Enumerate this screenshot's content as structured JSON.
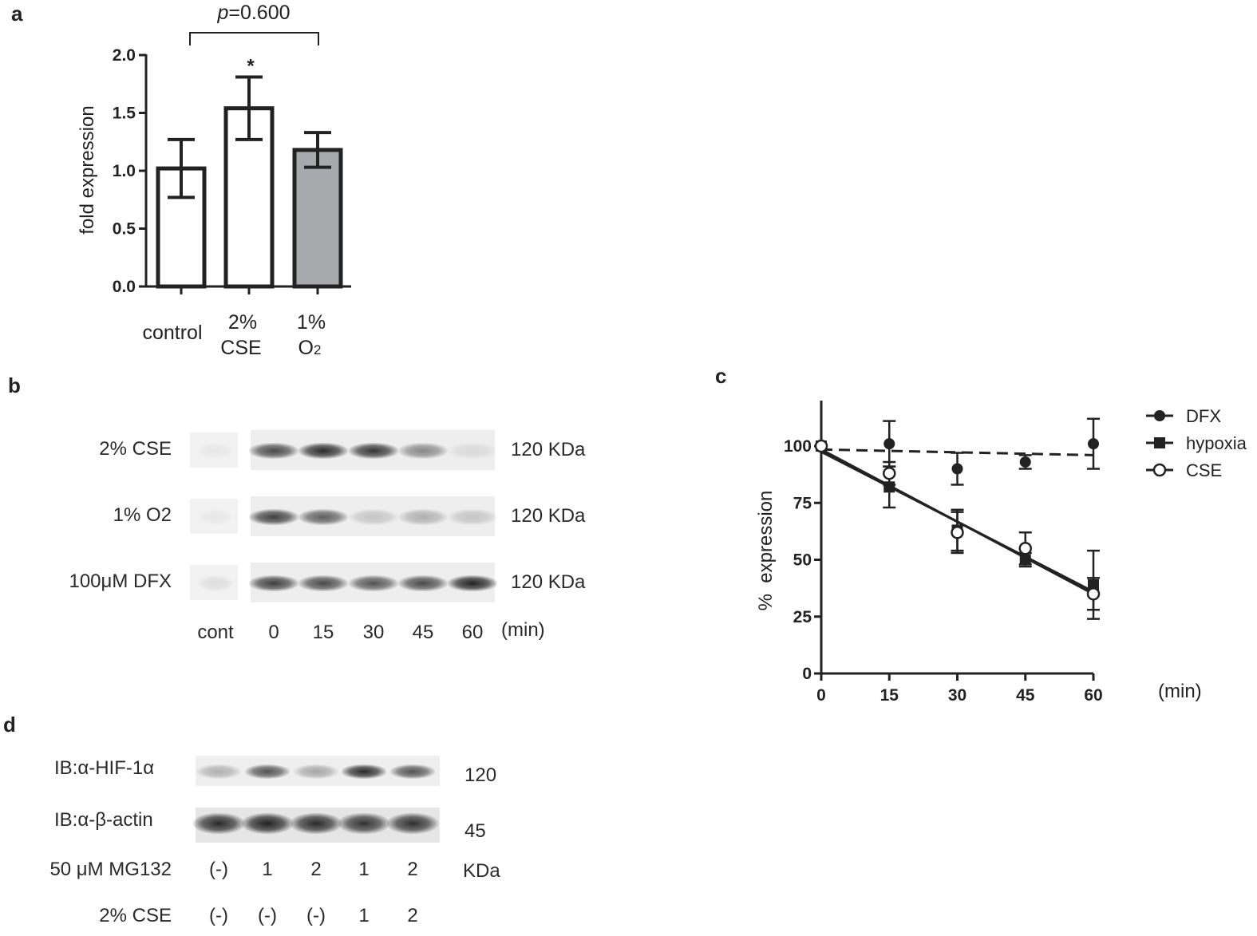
{
  "panels": {
    "a": {
      "label": "a"
    },
    "b": {
      "label": "b"
    },
    "c": {
      "label": "c"
    },
    "d": {
      "label": "d"
    }
  },
  "chart_data": [
    {
      "panel": "a",
      "type": "bar",
      "ylabel": "fold expression",
      "xlabel": "",
      "ylim": [
        0,
        2.0
      ],
      "yticks": [
        "0.0",
        "0.5",
        "1.0",
        "1.5",
        "2.0"
      ],
      "categories": [
        {
          "line1": "control",
          "line2": "",
          "sub": ""
        },
        {
          "line1": "2%",
          "line2": "CSE",
          "sub": ""
        },
        {
          "line1": "1%",
          "line2": "O",
          "sub": "2"
        }
      ],
      "values": [
        1.02,
        1.54,
        1.18
      ],
      "errors": [
        0.25,
        0.27,
        0.15
      ],
      "bar_colors": [
        "#ffffff",
        "#ffffff",
        "#a7a9ac"
      ],
      "significance_marker": "*",
      "comparison": {
        "prefix": "p",
        "suffix": "=0.600"
      }
    },
    {
      "panel": "c",
      "type": "line",
      "ylabel": "%  expression",
      "xunit": "(min)",
      "xlim": [
        0,
        60
      ],
      "ylim": [
        0,
        120
      ],
      "xticks": [
        "0",
        "15",
        "30",
        "45",
        "60"
      ],
      "yticks": [
        "0",
        "25",
        "50",
        "75",
        "100"
      ],
      "x": [
        0,
        15,
        30,
        45,
        60
      ],
      "series": [
        {
          "name": "DFX",
          "marker": "filled-circle",
          "line": "dashed",
          "values": [
            100,
            101,
            90,
            93,
            101
          ],
          "errors": [
            0,
            10,
            7,
            3,
            11
          ],
          "fit": [
            98.5,
            96
          ]
        },
        {
          "name": "hypoxia",
          "marker": "filled-square",
          "line": "solid",
          "values": [
            100,
            82,
            63,
            50,
            39
          ],
          "errors": [
            0,
            9,
            9,
            3,
            15
          ],
          "fit": [
            97.5,
            36
          ]
        },
        {
          "name": "CSE",
          "marker": "open-circle",
          "line": "solid",
          "values": [
            100,
            88,
            62,
            55,
            35
          ],
          "errors": [
            0,
            5,
            9,
            7,
            7
          ],
          "fit": [
            98.5,
            35
          ]
        }
      ]
    }
  ],
  "blot_b": {
    "rows": [
      {
        "label": "2% CSE",
        "size": "120 KDa",
        "intensities": [
          0.05,
          0.8,
          0.95,
          0.9,
          0.5,
          0.1
        ]
      },
      {
        "label": "1% O2",
        "size": "120 KDa",
        "intensities": [
          0.05,
          0.85,
          0.7,
          0.2,
          0.3,
          0.2
        ]
      },
      {
        "label": "100μM DFX",
        "size": "120 KDa",
        "intensities": [
          0.1,
          0.85,
          0.8,
          0.75,
          0.8,
          1.0
        ]
      }
    ],
    "lanes": [
      "cont",
      "0",
      "15",
      "30",
      "45",
      "60"
    ],
    "unit": "(min)"
  },
  "blot_d": {
    "rows": [
      {
        "label": "IB:α-HIF-1α",
        "size": "120",
        "intensities": [
          0.3,
          0.75,
          0.35,
          0.95,
          0.75
        ]
      },
      {
        "label": "IB:α-β-actin",
        "size": "45",
        "intensities": [
          0.95,
          1.0,
          0.95,
          0.9,
          0.92
        ]
      }
    ],
    "unit": "KDa",
    "conditions": [
      {
        "label": "50 μM MG132",
        "values": [
          "(-)",
          "1",
          "2",
          "1",
          "2"
        ]
      },
      {
        "label": "2% CSE",
        "values": [
          "(-)",
          "(-)",
          "(-)",
          "1",
          "2"
        ]
      }
    ]
  }
}
